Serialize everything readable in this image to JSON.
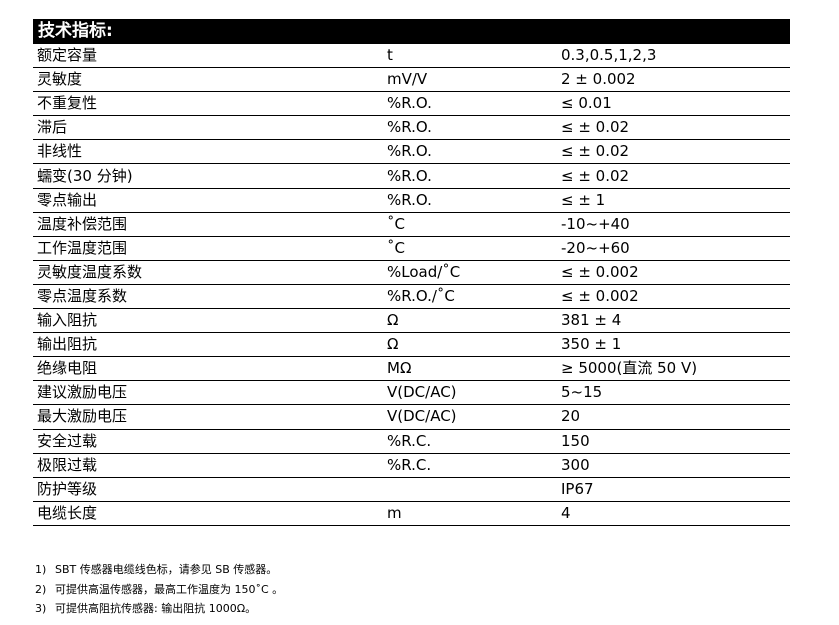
{
  "title": "技术指标:",
  "rows": [
    [
      "额定容量",
      "t",
      "0.3,0.5,1,2,3"
    ],
    [
      "灵敏度",
      "mV/V",
      "2 ± 0.002"
    ],
    [
      "不重复性",
      "%R.O.",
      "≤ 0.01"
    ],
    [
      "滞后",
      "%R.O.",
      "≤ ± 0.02"
    ],
    [
      "非线性",
      "%R.O.",
      "≤ ± 0.02"
    ],
    [
      "蠕变(30 分钟)",
      "%R.O.",
      "≤ ± 0.02"
    ],
    [
      "零点输出",
      "%R.O.",
      "≤ ± 1"
    ],
    [
      "温度补偿范围",
      "˚C",
      "-10~+40"
    ],
    [
      "工作温度范围",
      "˚C",
      "-20~+60"
    ],
    [
      "灵敏度温度系数",
      "%Load/˚C",
      "≤ ± 0.002"
    ],
    [
      "零点温度系数",
      "%R.O./˚C",
      "≤ ± 0.002"
    ],
    [
      "输入阻抗",
      "Ω",
      "381 ± 4"
    ],
    [
      "输出阻抗",
      "Ω",
      "350 ± 1"
    ],
    [
      "绝缘电阻",
      "MΩ",
      "≥ 5000(直流 50 V)"
    ],
    [
      "建议激励电压",
      "V(DC/AC)",
      "5~15"
    ],
    [
      "最大激励电压",
      "V(DC/AC)",
      "20"
    ],
    [
      "安全过载",
      "%R.C.",
      "150"
    ],
    [
      "极限过载",
      "%R.C.",
      "300"
    ],
    [
      "防护等级",
      "",
      "IP67"
    ],
    [
      "电缆长度",
      "m",
      "4"
    ]
  ],
  "notes": [
    [
      "1)",
      "SBT 传感器电缆线色标，请参见 SB 传感器。"
    ],
    [
      "2)",
      "可提供高温传感器，最高工作温度为 150˚C 。"
    ],
    [
      "3)",
      "可提供高阻抗传感器: 输出阻抗 1000Ω。"
    ]
  ]
}
